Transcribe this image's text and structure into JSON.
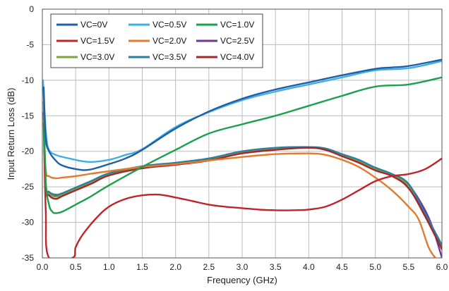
{
  "chart_data": {
    "type": "line",
    "title": "",
    "xlabel": "Frequency (GHz)",
    "ylabel": "Input Return Loss (dB)",
    "xlim": [
      0,
      6
    ],
    "ylim": [
      -35,
      0
    ],
    "x_ticks": [
      0,
      0.5,
      1,
      1.5,
      2,
      2.5,
      3,
      3.5,
      4,
      4.5,
      5,
      5.5,
      6
    ],
    "x_tick_labels": [
      "0.0",
      "0.5",
      "1.0",
      "1.5",
      "2.0",
      "2.5",
      "3.0",
      "3.5",
      "4.0",
      "4.5",
      "5.0",
      "5.5",
      "6.0"
    ],
    "y_ticks": [
      0,
      -5,
      -10,
      -15,
      -20,
      -25,
      -30,
      -35
    ],
    "y_tick_labels": [
      "0",
      "-5",
      "-10",
      "-15",
      "-20",
      "-25",
      "-30",
      "-35"
    ],
    "grid": true,
    "legend_position": "top-left",
    "series": [
      {
        "name": "VC=0V",
        "color": "#1f5fa8",
        "x": [
          0.02,
          0.05,
          0.1,
          0.2,
          0.3,
          0.5,
          0.7,
          1.0,
          1.25,
          1.5,
          2.0,
          2.5,
          3.0,
          3.5,
          4.0,
          4.5,
          5.0,
          5.25,
          5.5,
          6.0
        ],
        "y": [
          -11,
          -18,
          -20,
          -21.3,
          -22,
          -22.5,
          -22.6,
          -21.8,
          -21,
          -19.8,
          -16.8,
          -14.4,
          -12.6,
          -11.3,
          -10.3,
          -9.3,
          -8.4,
          -8.2,
          -8.0,
          -7.1
        ]
      },
      {
        "name": "VC=0.5V",
        "color": "#41aee3",
        "x": [
          0.01,
          0.03,
          0.06,
          0.1,
          0.2,
          0.4,
          0.7,
          1.0,
          1.25,
          1.5,
          2.0,
          2.5,
          3.0,
          3.5,
          4.0,
          4.5,
          5.0,
          5.5,
          6.0
        ],
        "y": [
          -10,
          -14,
          -18,
          -19.8,
          -20.5,
          -21,
          -21.5,
          -21.2,
          -20.5,
          -19.7,
          -16.6,
          -14.5,
          -12.8,
          -11.6,
          -10.6,
          -9.6,
          -8.6,
          -8.3,
          -7.3
        ]
      },
      {
        "name": "VC=1.0V",
        "color": "#1aa14b",
        "x": [
          0.02,
          0.05,
          0.1,
          0.15,
          0.2,
          0.3,
          0.5,
          0.7,
          1.0,
          1.5,
          2.0,
          2.5,
          3.0,
          3.5,
          4.0,
          4.5,
          5.0,
          5.5,
          6.0
        ],
        "y": [
          -13,
          -24,
          -27.5,
          -28.5,
          -28.7,
          -28.5,
          -27.5,
          -26.5,
          -24.8,
          -22.2,
          -19.8,
          -17.5,
          -16.2,
          -15.0,
          -13.6,
          -12.2,
          -10.9,
          -10.6,
          -9.6
        ]
      },
      {
        "name": "VC=1.5V",
        "color": "#c0242b",
        "x": [
          0.02,
          0.05,
          0.1,
          0.45,
          0.5,
          0.6,
          0.8,
          1.0,
          1.25,
          1.5,
          1.75,
          2.0,
          2.25,
          2.5,
          2.75,
          3.0,
          3.25,
          3.5,
          3.75,
          4.0,
          4.25,
          4.5,
          4.75,
          5.0,
          5.25,
          5.5,
          5.75,
          6.0
        ],
        "y": [
          -16,
          -28,
          -35,
          -35,
          -33.5,
          -31.8,
          -29.5,
          -27.8,
          -26.7,
          -26.2,
          -26.1,
          -26.5,
          -27,
          -27.5,
          -27.8,
          -28.0,
          -28.2,
          -28.3,
          -28.3,
          -28.2,
          -27.8,
          -26.8,
          -25.5,
          -24.2,
          -23.5,
          -23.2,
          -22.5,
          -21
        ]
      },
      {
        "name": "VC=2.0V",
        "color": "#e37a2c",
        "x": [
          0.02,
          0.05,
          0.1,
          0.2,
          0.3,
          0.5,
          0.7,
          1.0,
          1.5,
          2.0,
          2.5,
          3.0,
          3.5,
          4.0,
          4.25,
          4.5,
          4.75,
          5.0,
          5.25,
          5.5,
          5.65,
          5.8,
          5.9
        ],
        "y": [
          -15,
          -22.5,
          -23.5,
          -23.8,
          -23.7,
          -23.5,
          -23.2,
          -22.8,
          -22.2,
          -21.8,
          -21.3,
          -20.8,
          -20.4,
          -20.3,
          -20.5,
          -21.2,
          -22.2,
          -23.7,
          -25.5,
          -27.8,
          -29.6,
          -33.5,
          -35
        ]
      },
      {
        "name": "VC=2.5V",
        "color": "#6a3a97",
        "x": [
          0.02,
          0.05,
          0.1,
          0.2,
          0.3,
          0.5,
          0.75,
          1.0,
          1.5,
          2.0,
          2.5,
          3.0,
          3.5,
          4.0,
          4.25,
          4.5,
          4.75,
          5.0,
          5.25,
          5.5,
          5.7,
          5.85,
          6.0
        ],
        "y": [
          -14.5,
          -24.5,
          -25.8,
          -26.2,
          -26,
          -25.2,
          -24.2,
          -23.2,
          -22.2,
          -21.7,
          -21.1,
          -20.1,
          -19.6,
          -19.5,
          -19.7,
          -20.5,
          -21.3,
          -22.4,
          -23.3,
          -24.8,
          -27.5,
          -30.5,
          -35
        ]
      },
      {
        "name": "VC=3.0V",
        "color": "#7fa03d",
        "x": [
          0.02,
          0.05,
          0.1,
          0.2,
          0.3,
          0.5,
          0.75,
          1.0,
          1.5,
          2.0,
          2.5,
          3.0,
          3.5,
          4.0,
          4.25,
          4.5,
          4.75,
          5.0,
          5.25,
          5.5,
          5.75,
          6.0
        ],
        "y": [
          -14.8,
          -24.8,
          -25.9,
          -26.4,
          -26.1,
          -25.3,
          -24.3,
          -23.3,
          -22.3,
          -21.8,
          -21.2,
          -20.2,
          -19.7,
          -19.5,
          -19.8,
          -20.6,
          -21.4,
          -22.5,
          -23.4,
          -24.9,
          -29,
          -33.5
        ]
      },
      {
        "name": "VC=3.5V",
        "color": "#2c7f9e",
        "x": [
          0.02,
          0.05,
          0.1,
          0.2,
          0.3,
          0.5,
          0.75,
          1.0,
          1.5,
          2.0,
          2.5,
          3.0,
          3.5,
          4.0,
          4.25,
          4.5,
          4.75,
          5.0,
          5.25,
          5.5,
          5.75,
          6.0
        ],
        "y": [
          -14.6,
          -24.6,
          -25.7,
          -26.1,
          -25.9,
          -25.1,
          -24.1,
          -23.1,
          -22.1,
          -21.6,
          -21.0,
          -20.0,
          -19.5,
          -19.4,
          -19.6,
          -20.4,
          -21.2,
          -22.3,
          -23.2,
          -24.6,
          -28.8,
          -33.2
        ]
      },
      {
        "name": "VC=4.0V",
        "color": "#a3282b",
        "x": [
          0.02,
          0.05,
          0.1,
          0.2,
          0.3,
          0.5,
          0.75,
          1.0,
          1.5,
          2.0,
          2.5,
          3.0,
          3.5,
          4.0,
          4.25,
          4.5,
          4.75,
          5.0,
          5.25,
          5.5,
          5.75,
          6.0
        ],
        "y": [
          -14.7,
          -25.0,
          -26.2,
          -26.7,
          -26.3,
          -25.5,
          -24.5,
          -23.4,
          -22.4,
          -21.9,
          -21.3,
          -20.3,
          -19.8,
          -19.5,
          -19.8,
          -20.7,
          -21.6,
          -22.7,
          -23.5,
          -25.2,
          -29.2,
          -33.8
        ]
      }
    ]
  }
}
